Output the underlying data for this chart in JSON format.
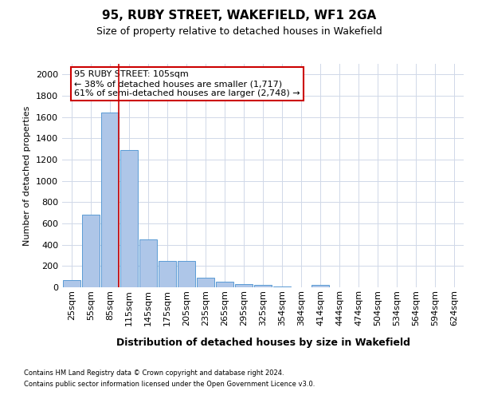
{
  "title": "95, RUBY STREET, WAKEFIELD, WF1 2GA",
  "subtitle": "Size of property relative to detached houses in Wakefield",
  "xlabel": "Distribution of detached houses by size in Wakefield",
  "ylabel": "Number of detached properties",
  "footer_line1": "Contains HM Land Registry data © Crown copyright and database right 2024.",
  "footer_line2": "Contains public sector information licensed under the Open Government Licence v3.0.",
  "annotation_line1": "95 RUBY STREET: 105sqm",
  "annotation_line2": "← 38% of detached houses are smaller (1,717)",
  "annotation_line3": "61% of semi-detached houses are larger (2,748) →",
  "bar_labels": [
    "25sqm",
    "55sqm",
    "85sqm",
    "115sqm",
    "145sqm",
    "175sqm",
    "205sqm",
    "235sqm",
    "265sqm",
    "295sqm",
    "325sqm",
    "354sqm",
    "384sqm",
    "414sqm",
    "444sqm",
    "474sqm",
    "504sqm",
    "534sqm",
    "564sqm",
    "594sqm",
    "624sqm"
  ],
  "bar_values": [
    65,
    680,
    1640,
    1290,
    450,
    250,
    250,
    90,
    50,
    30,
    25,
    5,
    0,
    20,
    0,
    0,
    0,
    0,
    0,
    0,
    0
  ],
  "bar_color": "#aec6e8",
  "bar_edge_color": "#5b9bd5",
  "ylim": [
    0,
    2100
  ],
  "yticks": [
    0,
    200,
    400,
    600,
    800,
    1000,
    1200,
    1400,
    1600,
    1800,
    2000
  ],
  "grid_color": "#d0d8e8",
  "annotation_box_edge_color": "#cc0000",
  "bg_color": "#ffffff",
  "title_fontsize": 11,
  "subtitle_fontsize": 9,
  "ylabel_fontsize": 8,
  "xlabel_fontsize": 9,
  "tick_fontsize": 8,
  "footer_fontsize": 6,
  "annotation_fontsize": 8
}
